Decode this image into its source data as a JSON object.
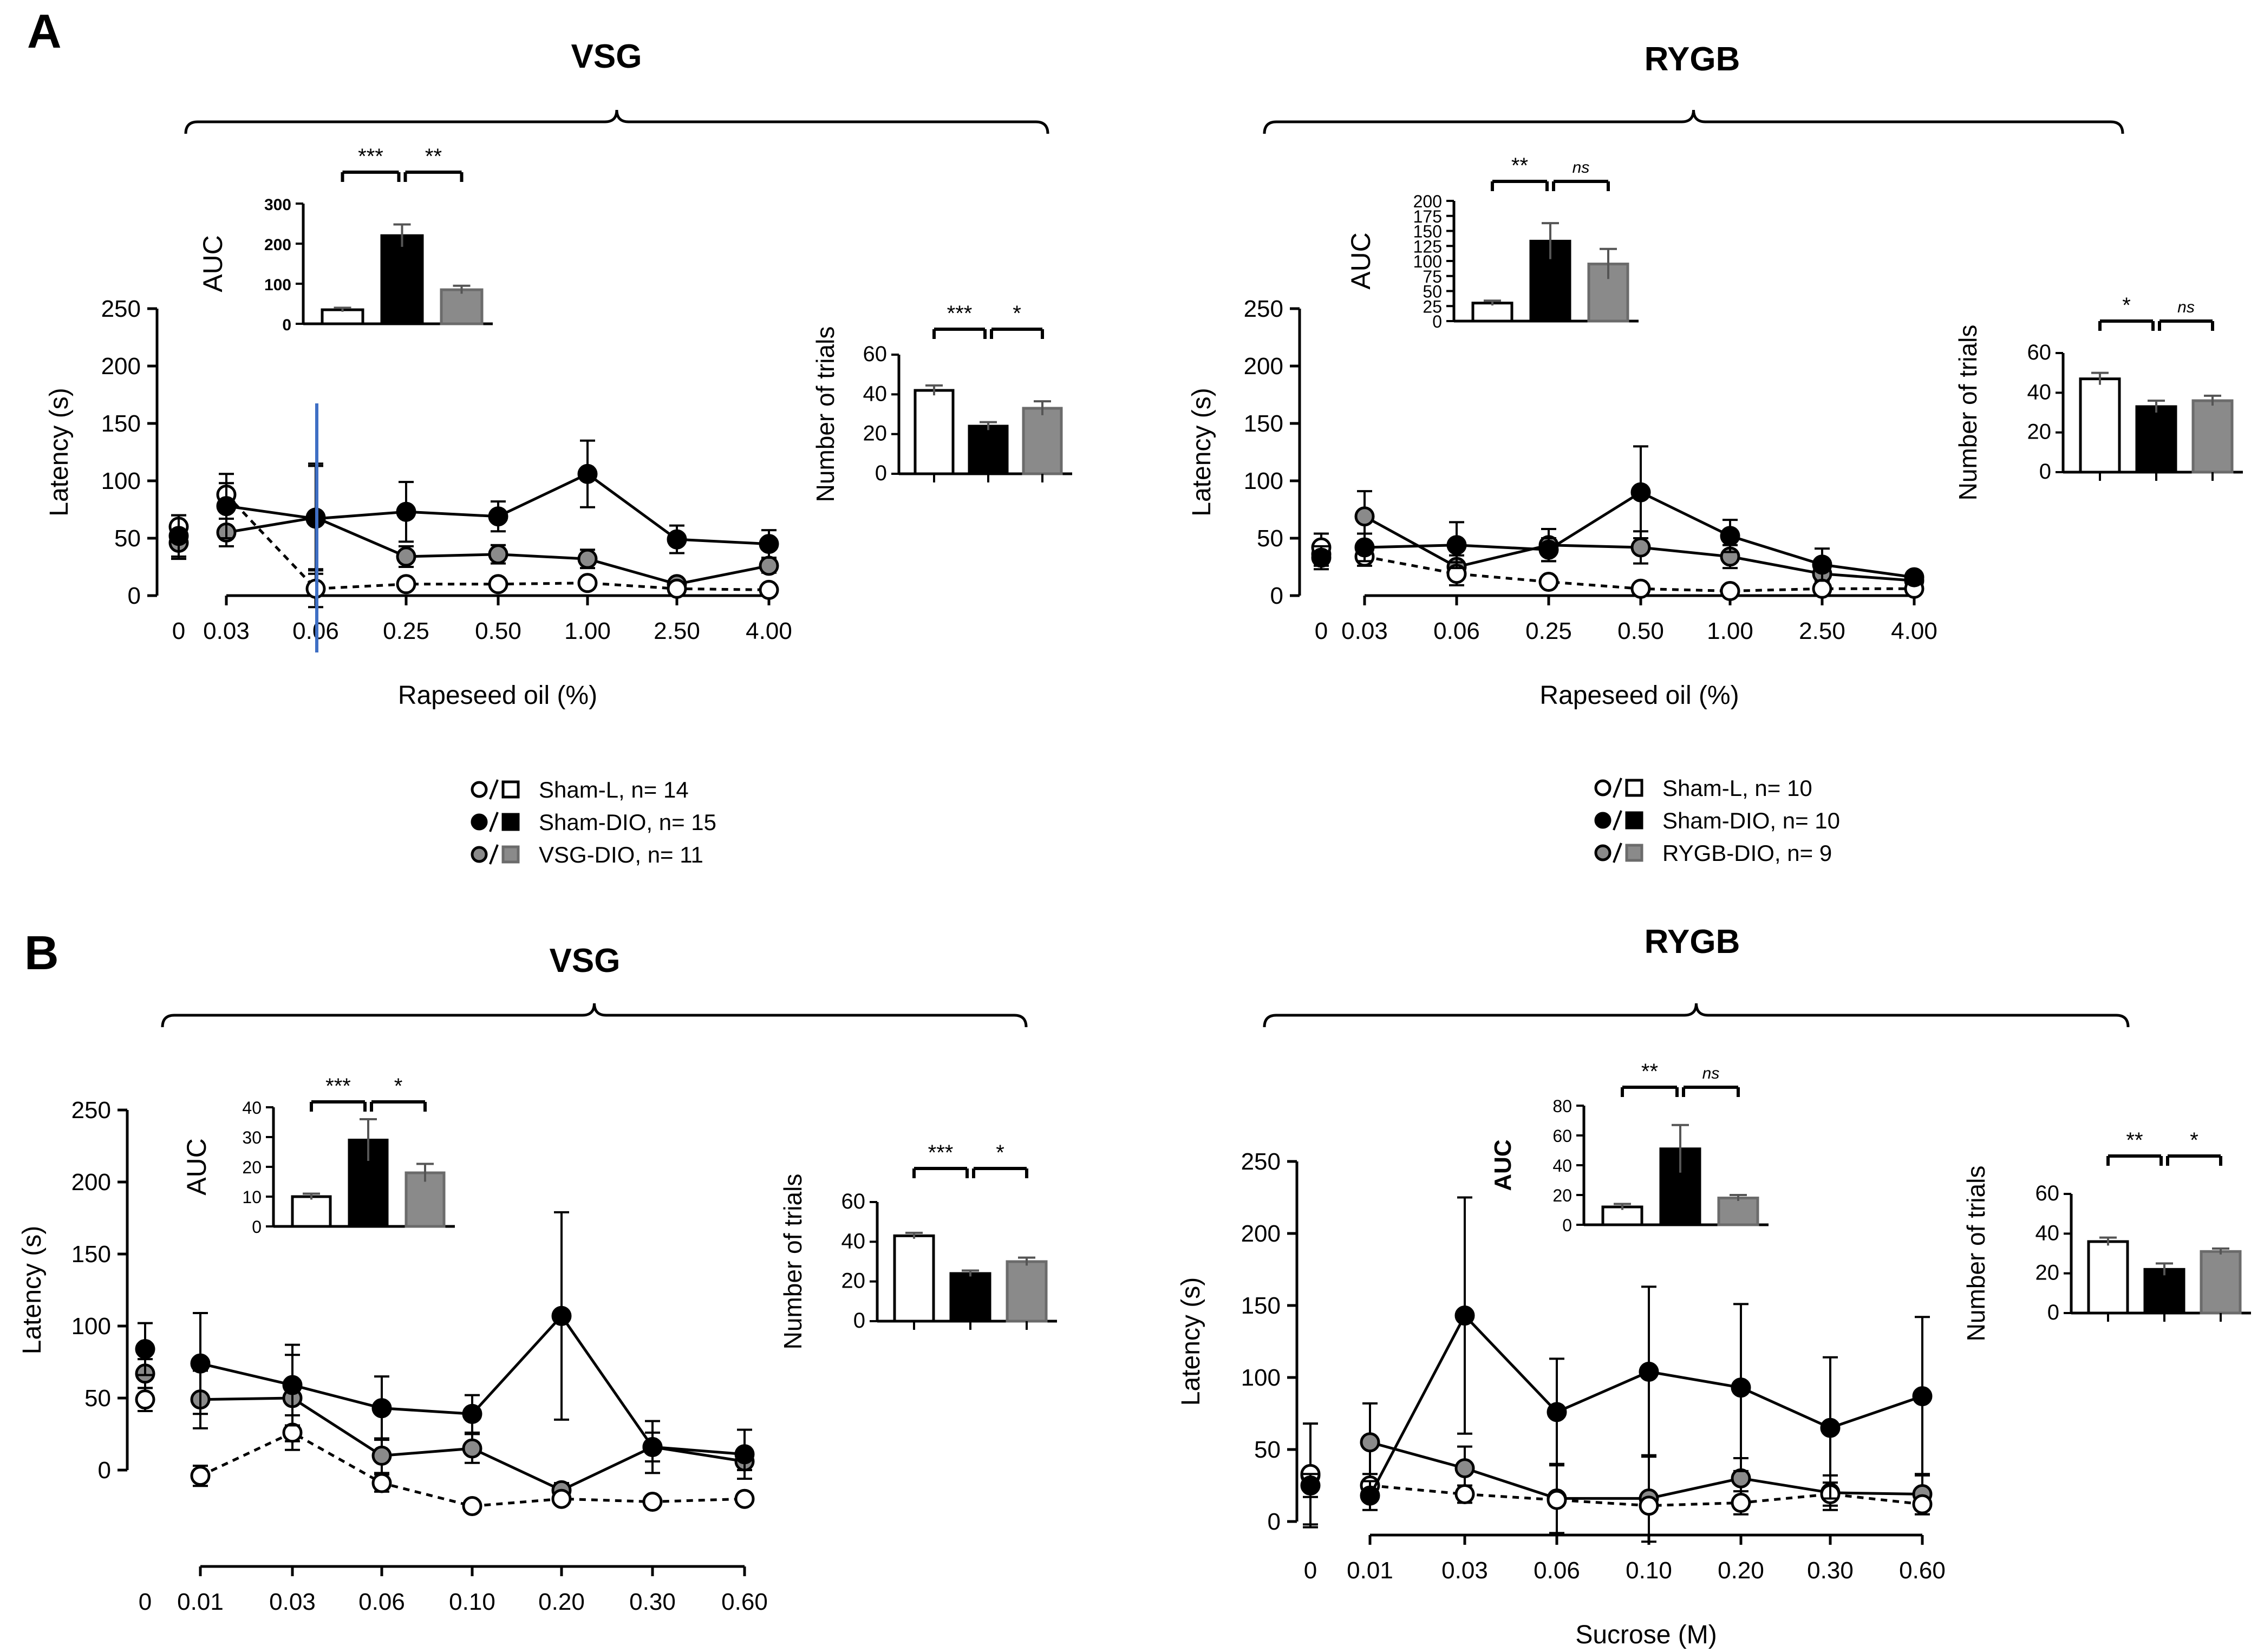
{
  "panel_labels": [
    "A",
    "B"
  ],
  "chart_data": [
    {
      "id": "A_VSG",
      "type": "line",
      "group_title": "VSG",
      "xlabel": "Rapeseed oil (%)",
      "ylabel": "Latency (s)",
      "ylim": [
        0,
        250
      ],
      "y_ticks": [
        "0",
        "50",
        "100",
        "150",
        "200",
        "250"
      ],
      "x_tick_labels": [
        "0",
        "0.03",
        "0.06",
        "0.25",
        "0.50",
        "1.00",
        "2.50",
        "4.00"
      ],
      "series": [
        {
          "name": "Sham-L",
          "values": [
            60,
            88,
            6,
            10,
            10,
            11,
            6,
            5
          ],
          "errors": [
            10,
            10,
            16,
            3,
            3,
            3,
            2,
            2
          ]
        },
        {
          "name": "Sham-DIO",
          "values": [
            52,
            78,
            67,
            73,
            69,
            106,
            49,
            45
          ],
          "errors": [
            18,
            28,
            48,
            26,
            13,
            29,
            12,
            12
          ]
        },
        {
          "name": "VSG-DIO",
          "values": [
            46,
            55,
            68,
            34,
            36,
            32,
            10,
            26
          ],
          "errors": [
            14,
            12,
            45,
            9,
            8,
            8,
            3,
            6
          ]
        }
      ],
      "auc": {
        "ylabel": "AUC",
        "ylim": [
          0,
          300
        ],
        "y_ticks": [
          "0",
          "100",
          "200",
          "300"
        ],
        "values": [
          35,
          220,
          85
        ],
        "errors": [
          5,
          28,
          10
        ],
        "sig": [
          "***",
          "**"
        ]
      },
      "trials": {
        "ylabel": "Number of trials",
        "ylim": [
          0,
          60
        ],
        "y_ticks": [
          "0",
          "20",
          "40",
          "60"
        ],
        "values": [
          42,
          24,
          33
        ],
        "errors": [
          2.5,
          2,
          3.5
        ],
        "sig": [
          "***",
          "*"
        ]
      },
      "legend": [
        "Sham-L, n= 14",
        "Sham-DIO, n= 15",
        "VSG-DIO, n= 11"
      ]
    },
    {
      "id": "A_RYGB",
      "type": "line",
      "group_title": "RYGB",
      "xlabel": "Rapeseed oil (%)",
      "ylabel": "Latency (s)",
      "ylim": [
        0,
        250
      ],
      "y_ticks": [
        "0",
        "50",
        "100",
        "150",
        "200",
        "250"
      ],
      "x_tick_labels": [
        "0",
        "0.03",
        "0.06",
        "0.25",
        "0.50",
        "1.00",
        "2.50",
        "4.00"
      ],
      "series": [
        {
          "name": "Sham-L",
          "values": [
            42,
            34,
            19,
            12,
            6,
            4,
            6,
            6
          ],
          "errors": [
            12,
            8,
            10,
            3,
            2,
            2,
            2,
            2
          ]
        },
        {
          "name": "Sham-DIO",
          "values": [
            33,
            42,
            44,
            40,
            90,
            52,
            27,
            16
          ],
          "errors": [
            10,
            12,
            20,
            10,
            40,
            14,
            14,
            5
          ]
        },
        {
          "name": "RYGB-DIO",
          "values": [
            36,
            69,
            25,
            44,
            42,
            34,
            19,
            13
          ],
          "errors": [
            10,
            22,
            10,
            14,
            14,
            10,
            8,
            4
          ]
        }
      ],
      "auc": {
        "ylabel": "AUC",
        "ylim": [
          0,
          200
        ],
        "y_ticks": [
          "0",
          "25",
          "50",
          "75",
          "100",
          "125",
          "150",
          "175",
          "200"
        ],
        "values": [
          30,
          133,
          95
        ],
        "errors": [
          4,
          30,
          25
        ],
        "sig": [
          "**",
          "ns"
        ]
      },
      "trials": {
        "ylabel": "Number of trials",
        "ylim": [
          0,
          60
        ],
        "y_ticks": [
          "0",
          "20",
          "40",
          "60"
        ],
        "values": [
          47,
          33,
          36
        ],
        "errors": [
          3,
          3,
          2.5
        ],
        "sig": [
          "*",
          "ns"
        ]
      },
      "legend": [
        "Sham-L, n= 10",
        "Sham-DIO, n= 10",
        "RYGB-DIO, n= 9"
      ]
    },
    {
      "id": "B_VSG",
      "type": "line",
      "group_title": "VSG",
      "xlabel": "Sucrose (M)",
      "ylabel": "Latency (s)",
      "ylim": [
        0,
        250
      ],
      "y_ticks": [
        "0",
        "50",
        "100",
        "150",
        "200",
        "250"
      ],
      "x_tick_labels": [
        "0",
        "0.01",
        "0.03",
        "0.06",
        "0.10",
        "0.20",
        "0.30",
        "0.60"
      ],
      "series": [
        {
          "name": "Sham-L",
          "values": [
            49,
            -4,
            26,
            -9,
            -25,
            -20,
            -22,
            -20
          ],
          "errors": [
            8,
            7,
            12,
            6,
            3,
            3,
            3,
            2
          ]
        },
        {
          "name": "Sham-DIO",
          "values": [
            84,
            74,
            59,
            43,
            39,
            107,
            16,
            11
          ],
          "errors": [
            18,
            35,
            28,
            22,
            13,
            72,
            18,
            17
          ]
        },
        {
          "name": "VSG-DIO",
          "values": [
            67,
            49,
            50,
            10,
            15,
            -14,
            16,
            6
          ],
          "errors": [
            10,
            20,
            30,
            12,
            10,
            5,
            10,
            6
          ]
        }
      ],
      "auc": {
        "ylabel": "AUC",
        "ylim": [
          0,
          40
        ],
        "y_ticks": [
          "0",
          "10",
          "20",
          "30",
          "40"
        ],
        "values": [
          10,
          29,
          18
        ],
        "errors": [
          1,
          7,
          3
        ],
        "sig": [
          "***",
          "*"
        ]
      },
      "trials": {
        "ylabel": "Number of trials",
        "ylim": [
          0,
          60
        ],
        "y_ticks": [
          "0",
          "20",
          "40",
          "60"
        ],
        "values": [
          43,
          24,
          30
        ],
        "errors": [
          1.5,
          1.5,
          2
        ],
        "sig": [
          "***",
          "*"
        ]
      }
    },
    {
      "id": "B_RYGB",
      "type": "line",
      "group_title": "RYGB",
      "xlabel": "Sucrose (M)",
      "ylabel": "Latency (s)",
      "ylim": [
        0,
        250
      ],
      "y_ticks": [
        "0",
        "50",
        "100",
        "150",
        "200",
        "250"
      ],
      "x_tick_labels": [
        "0",
        "0.01",
        "0.03",
        "0.06",
        "0.10",
        "0.20",
        "0.30",
        "0.60"
      ],
      "series": [
        {
          "name": "Sham-L",
          "values": [
            33,
            25,
            19,
            15,
            11,
            13,
            19,
            12
          ],
          "errors": [
            35,
            8,
            6,
            4,
            4,
            8,
            8,
            4
          ]
        },
        {
          "name": "Sham-DIO",
          "values": [
            25,
            18,
            143,
            76,
            104,
            93,
            65,
            87
          ],
          "errors": [
            8,
            10,
            82,
            37,
            59,
            58,
            49,
            55
          ]
        },
        {
          "name": "RYGB-DIO",
          "values": [
            32,
            55,
            37,
            16,
            16,
            30,
            20,
            19
          ],
          "errors": [
            36,
            27,
            15,
            24,
            30,
            14,
            12,
            14
          ]
        }
      ],
      "auc": {
        "ylabel": "AUC",
        "ylim": [
          0,
          80
        ],
        "y_ticks": [
          "0",
          "20",
          "40",
          "60",
          "80"
        ],
        "values": [
          12,
          51,
          18
        ],
        "errors": [
          2,
          16,
          2
        ],
        "sig": [
          "**",
          "ns"
        ]
      },
      "trials": {
        "ylabel": "Number of trials",
        "ylim": [
          0,
          60
        ],
        "y_ticks": [
          "0",
          "20",
          "40",
          "60"
        ],
        "values": [
          36,
          22,
          31
        ],
        "errors": [
          2,
          3,
          1.5
        ],
        "sig": [
          "**",
          "*"
        ]
      }
    }
  ],
  "colors": {
    "sham_l": "#ffffff",
    "sham_dio": "#000000",
    "surgery_dio": "#8a8a8a",
    "marker_line": "#000000",
    "cursor_line": "#3f6fc4"
  }
}
